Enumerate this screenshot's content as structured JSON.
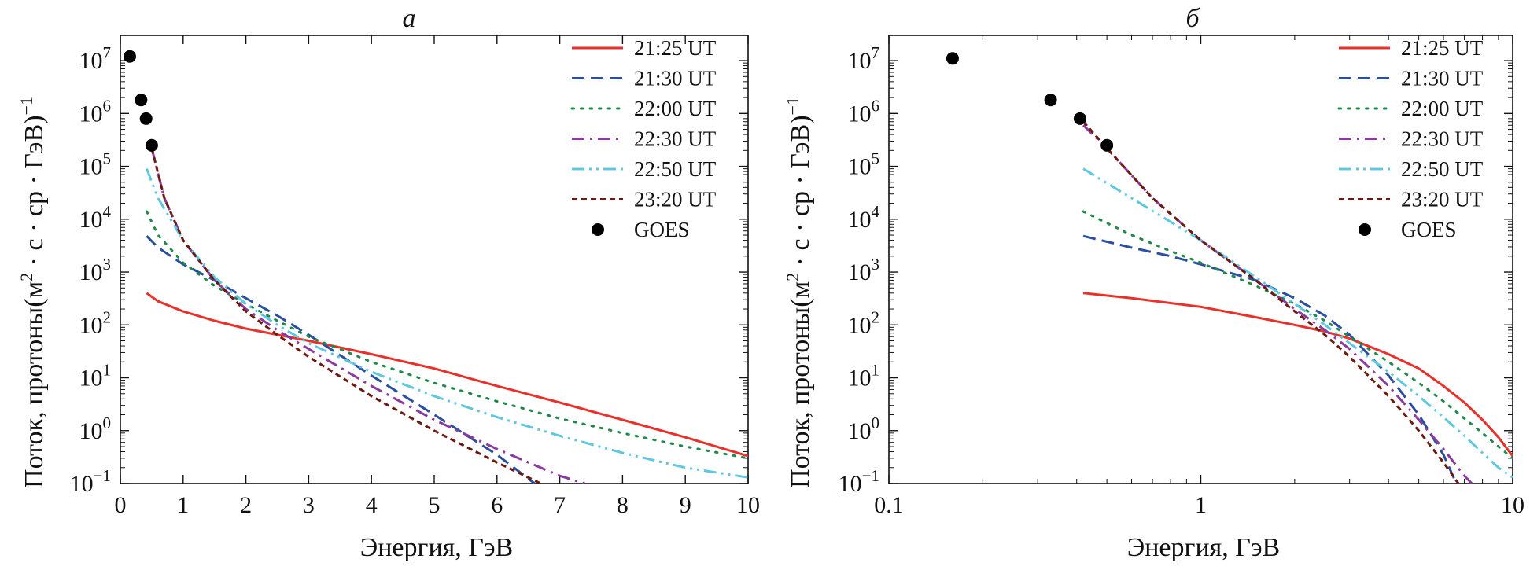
{
  "chart_data": [
    {
      "type": "line",
      "panel_label": "а",
      "xscale": "linear",
      "yscale": "log",
      "xlim": [
        0,
        10
      ],
      "ylim": [
        0.1,
        30000000
      ],
      "xticks": [
        0,
        1,
        2,
        3,
        4,
        5,
        6,
        7,
        8,
        9,
        10
      ],
      "xtick_labels": [
        "0",
        "1",
        "2",
        "3",
        "4",
        "5",
        "6",
        "7",
        "8",
        "9",
        "10"
      ],
      "yticks": [
        0.1,
        1,
        10,
        100,
        1000,
        10000,
        100000,
        1000000,
        10000000
      ],
      "ytick_labels": [
        {
          "base": "10",
          "exp": "−1"
        },
        {
          "base": "10",
          "exp": "0"
        },
        {
          "base": "10",
          "exp": "1"
        },
        {
          "base": "10",
          "exp": "2"
        },
        {
          "base": "10",
          "exp": "3"
        },
        {
          "base": "10",
          "exp": "4"
        },
        {
          "base": "10",
          "exp": "5"
        },
        {
          "base": "10",
          "exp": "6"
        },
        {
          "base": "10",
          "exp": "7"
        }
      ],
      "xlabel": "Энергия, ГэВ",
      "ylabel": {
        "prefix": "Поток, протоны(м",
        "sup1": "2",
        "middle": " · с · ср · ГэВ)",
        "sup2": "−1"
      },
      "legend_position": "top-right",
      "series": [
        {
          "name": "21:25 UT",
          "color": "#e8312a",
          "dash": "solid",
          "x": [
            0.42,
            0.6,
            1,
            1.5,
            2,
            3,
            4,
            5,
            6,
            7,
            8,
            9,
            10
          ],
          "y": [
            400,
            280,
            180,
            120,
            85,
            50,
            28,
            15,
            7,
            3.4,
            1.6,
            0.75,
            0.33
          ]
        },
        {
          "name": "21:30 UT",
          "color": "#2a4ea0",
          "dash": "dashed",
          "x": [
            0.42,
            0.6,
            1,
            1.5,
            2,
            2.5,
            3,
            4,
            5,
            6,
            6.6
          ],
          "y": [
            4800,
            2900,
            1400,
            700,
            320,
            150,
            65,
            11,
            2,
            0.35,
            0.1
          ]
        },
        {
          "name": "22:00 UT",
          "color": "#1e8a4a",
          "dash": "dotted",
          "x": [
            0.42,
            0.6,
            1,
            1.5,
            2,
            2.5,
            3,
            4,
            5,
            6,
            7,
            8,
            9,
            10
          ],
          "y": [
            14000,
            5000,
            1500,
            550,
            250,
            120,
            60,
            20,
            8,
            3.6,
            1.7,
            0.9,
            0.5,
            0.3
          ]
        },
        {
          "name": "22:30 UT",
          "color": "#8b3aa0",
          "dash": "dashdot",
          "x": [
            0.5,
            0.7,
            1,
            1.5,
            2,
            2.5,
            3,
            4,
            5,
            6,
            7,
            7.4
          ],
          "y": [
            220000,
            25000,
            4000,
            700,
            200,
            80,
            35,
            7,
            1.6,
            0.45,
            0.14,
            0.1
          ]
        },
        {
          "name": "22:50 UT",
          "color": "#5fc8e0",
          "dash": "dashdotdot",
          "x": [
            0.42,
            0.6,
            1,
            1.5,
            2,
            2.5,
            3,
            4,
            5,
            6,
            7,
            8,
            9,
            10
          ],
          "y": [
            90000,
            25000,
            4000,
            800,
            250,
            100,
            45,
            13,
            4.5,
            1.8,
            0.8,
            0.38,
            0.2,
            0.13
          ]
        },
        {
          "name": "23:20 UT",
          "color": "#6b1a10",
          "dash": "shortdash",
          "x": [
            0.5,
            0.7,
            1,
            1.5,
            2,
            2.5,
            3,
            4,
            5,
            6,
            6.7
          ],
          "y": [
            220000,
            25000,
            4000,
            700,
            180,
            65,
            25,
            4.5,
            1,
            0.25,
            0.1
          ]
        }
      ],
      "points": {
        "name": "GOES",
        "color": "#000000",
        "x": [
          0.15,
          0.33,
          0.41,
          0.5
        ],
        "y": [
          12000000,
          1800000,
          800000,
          250000
        ]
      }
    },
    {
      "type": "line",
      "panel_label": "б",
      "xscale": "log",
      "yscale": "log",
      "xlim": [
        0.1,
        10
      ],
      "ylim": [
        0.1,
        30000000
      ],
      "xticks": [
        0.1,
        1,
        10
      ],
      "xtick_labels": [
        "0.1",
        "1",
        "10"
      ],
      "yticks": [
        0.1,
        1,
        10,
        100,
        1000,
        10000,
        100000,
        1000000,
        10000000
      ],
      "ytick_labels": [
        {
          "base": "10",
          "exp": "−1"
        },
        {
          "base": "10",
          "exp": "0"
        },
        {
          "base": "10",
          "exp": "1"
        },
        {
          "base": "10",
          "exp": "2"
        },
        {
          "base": "10",
          "exp": "3"
        },
        {
          "base": "10",
          "exp": "4"
        },
        {
          "base": "10",
          "exp": "5"
        },
        {
          "base": "10",
          "exp": "6"
        },
        {
          "base": "10",
          "exp": "7"
        }
      ],
      "xlabel": "Энергия, ГэВ",
      "ylabel": {
        "prefix": "Поток, протоны(м",
        "sup1": "2",
        "middle": " · с · ср · ГэВ)",
        "sup2": "−1"
      },
      "legend_position": "top-right",
      "series": [
        {
          "name": "21:25 UT",
          "color": "#e8312a",
          "dash": "solid",
          "x": [
            0.42,
            0.6,
            1,
            1.5,
            2,
            2.5,
            3,
            4,
            5,
            6,
            7,
            8,
            9,
            10
          ],
          "y": [
            400,
            320,
            220,
            140,
            100,
            75,
            55,
            28,
            15,
            7,
            3.4,
            1.6,
            0.75,
            0.33
          ]
        },
        {
          "name": "21:30 UT",
          "color": "#2a4ea0",
          "dash": "dashed",
          "x": [
            0.42,
            0.6,
            0.8,
            1,
            1.5,
            2,
            2.5,
            3,
            4,
            5,
            6,
            6.6
          ],
          "y": [
            4800,
            2900,
            2000,
            1400,
            700,
            320,
            150,
            65,
            11,
            2,
            0.35,
            0.1
          ]
        },
        {
          "name": "22:00 UT",
          "color": "#1e8a4a",
          "dash": "dotted",
          "x": [
            0.42,
            0.6,
            0.8,
            1,
            1.5,
            2,
            2.5,
            3,
            4,
            5,
            6,
            7,
            8,
            9,
            10
          ],
          "y": [
            14000,
            5000,
            2500,
            1500,
            550,
            250,
            120,
            60,
            20,
            8,
            3.6,
            1.7,
            0.9,
            0.5,
            0.3
          ]
        },
        {
          "name": "22:30 UT",
          "color": "#8b3aa0",
          "dash": "dashdot",
          "x": [
            0.42,
            0.5,
            0.7,
            1,
            1.5,
            2,
            2.5,
            3,
            4,
            5,
            6,
            7,
            7.4
          ],
          "y": [
            600000,
            220000,
            25000,
            4000,
            700,
            200,
            80,
            35,
            7,
            1.6,
            0.45,
            0.14,
            0.1
          ]
        },
        {
          "name": "22:50 UT",
          "color": "#5fc8e0",
          "dash": "dashdotdot",
          "x": [
            0.42,
            0.6,
            1,
            1.5,
            2,
            2.5,
            3,
            4,
            5,
            6,
            7,
            8,
            9,
            10
          ],
          "y": [
            90000,
            25000,
            4000,
            800,
            250,
            100,
            45,
            13,
            4.5,
            1.8,
            0.8,
            0.38,
            0.2,
            0.13
          ]
        },
        {
          "name": "23:20 UT",
          "color": "#6b1a10",
          "dash": "shortdash",
          "x": [
            0.42,
            0.5,
            0.7,
            1,
            1.5,
            2,
            2.5,
            3,
            4,
            5,
            6,
            6.7
          ],
          "y": [
            700000,
            220000,
            25000,
            4000,
            700,
            180,
            65,
            25,
            4.5,
            1,
            0.25,
            0.1
          ]
        }
      ],
      "points": {
        "name": "GOES",
        "color": "#000000",
        "x": [
          0.16,
          0.33,
          0.41,
          0.5
        ],
        "y": [
          11000000,
          1800000,
          800000,
          250000
        ]
      }
    }
  ]
}
